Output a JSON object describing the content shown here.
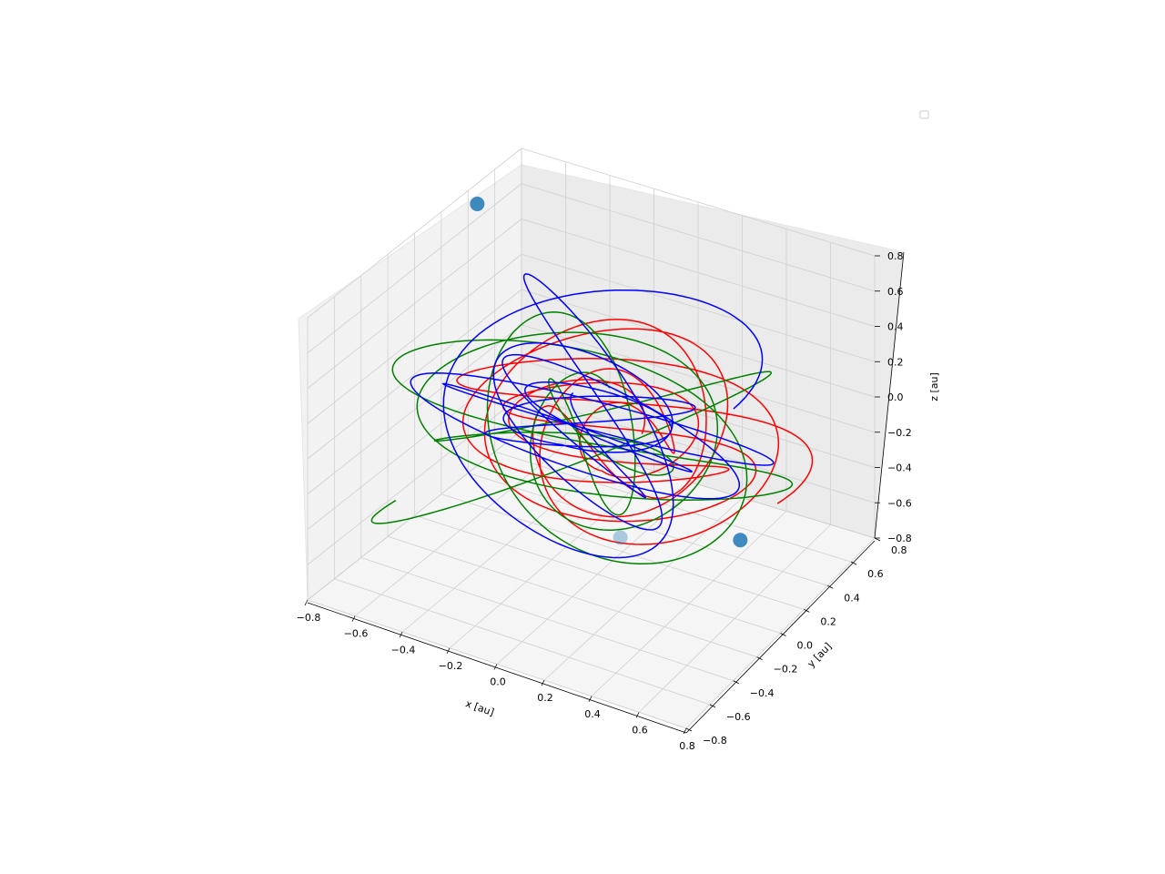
{
  "chart_data": {
    "type": "line",
    "projection": "3d",
    "title": "",
    "xlabel": "x [au]",
    "ylabel": "y [au]",
    "zlabel": "z [au]",
    "xlim": [
      -0.8,
      0.8
    ],
    "ylim": [
      -0.8,
      0.8
    ],
    "zlim": [
      -0.8,
      0.8
    ],
    "x_ticks": [
      "−0.8",
      "−0.6",
      "−0.4",
      "−0.2",
      "0.0",
      "0.2",
      "0.4",
      "0.6",
      "0.8"
    ],
    "y_ticks": [
      "−0.8",
      "−0.6",
      "−0.4",
      "−0.2",
      "0.0",
      "0.2",
      "0.4",
      "0.6",
      "0.8"
    ],
    "z_ticks": [
      "−0.8",
      "−0.6",
      "−0.4",
      "−0.2",
      "0.0",
      "0.2",
      "0.4",
      "0.6",
      "0.8"
    ],
    "grid": true,
    "legend": {
      "placement": "upper right",
      "entries": []
    },
    "series": [
      {
        "color": "#ff0000"
      },
      {
        "color": "#008000"
      },
      {
        "color": "#0000ff"
      }
    ],
    "markers": {
      "color": "#1f77b4",
      "points": [
        {
          "x": -0.97,
          "y": 0.75,
          "z": 0.45
        },
        {
          "x": 0.88,
          "y": -0.5,
          "z": 0.1
        },
        {
          "x": 0.1,
          "y": 0.0,
          "z": -0.55
        }
      ]
    }
  }
}
